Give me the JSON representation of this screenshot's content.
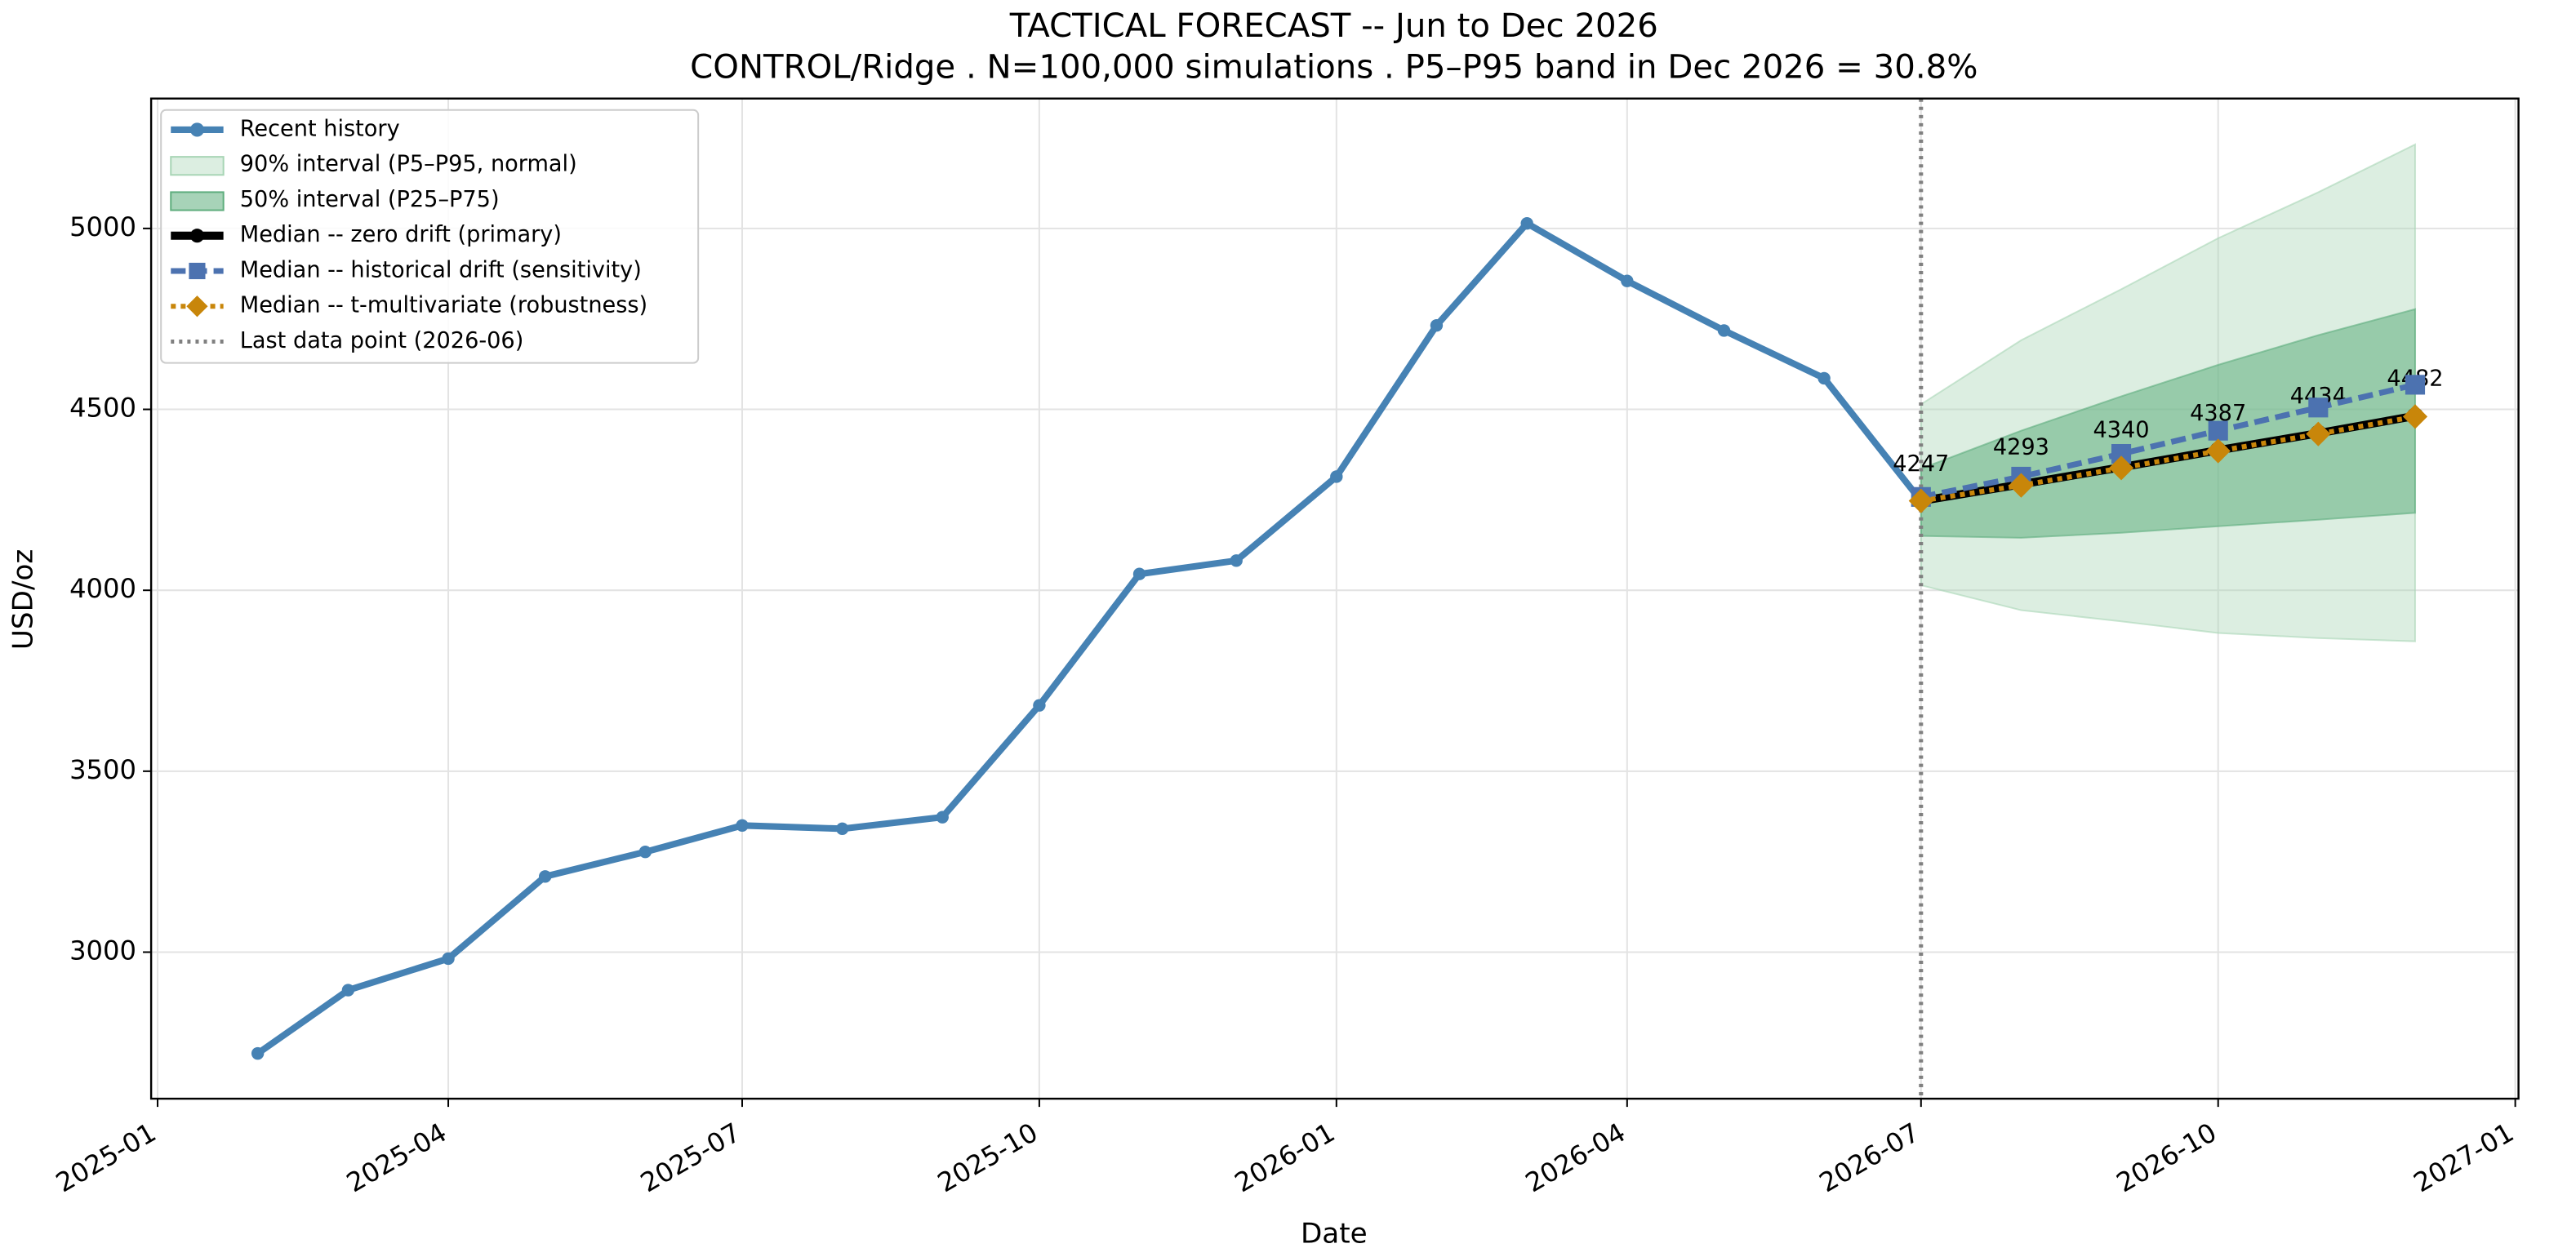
{
  "chart_data": {
    "type": "line",
    "title": "TACTICAL FORECAST -- Jun to Dec 2026",
    "subtitle": "CONTROL/Ridge . N=100,000 simulations . P5–P95 band in Dec 2026 = 30.8%",
    "xlabel": "Date",
    "ylabel": "USD/oz",
    "xlim": [
      "2024-12-30",
      "2027-01-02"
    ],
    "xticks": [
      "2025-01",
      "2025-04",
      "2025-07",
      "2025-10",
      "2026-01",
      "2026-04",
      "2026-07",
      "2026-10",
      "2027-01"
    ],
    "ylim": [
      2595,
      5359
    ],
    "yticks": [
      3000,
      3500,
      4000,
      4500,
      5000
    ],
    "grid": true,
    "legend": "upper left",
    "bands": [
      {
        "name": "90% interval (P5–P95, normal)",
        "color": "#a8d5b5",
        "x": [
          "2026-07",
          "2026-08",
          "2026-09",
          "2026-10",
          "2026-11",
          "2026-12"
        ],
        "lower": [
          4014,
          3945,
          3914,
          3882,
          3868,
          3859
        ],
        "upper": [
          4514,
          4691,
          4832,
          4973,
          5100,
          5232
        ]
      },
      {
        "name": "50% interval (P25–P75)",
        "color": "#5fae7e",
        "x": [
          "2026-07",
          "2026-08",
          "2026-09",
          "2026-10",
          "2026-11",
          "2026-12"
        ],
        "lower": [
          4150,
          4145,
          4159,
          4177,
          4195,
          4214
        ],
        "upper": [
          4336,
          4441,
          4536,
          4623,
          4705,
          4777
        ]
      }
    ],
    "series": [
      {
        "name": "Recent history",
        "color": "#4682b4",
        "linestyle": "solid",
        "marker": "circle",
        "x": [
          "2025-02",
          "2025-03",
          "2025-04",
          "2025-05",
          "2025-06",
          "2025-07",
          "2025-08",
          "2025-09",
          "2025-10",
          "2025-11",
          "2025-12",
          "2026-01",
          "2026-02",
          "2026-03",
          "2026-04",
          "2026-05",
          "2026-06",
          "2026-07"
        ],
        "values": [
          2720,
          2895,
          2982,
          3209,
          3277,
          3350,
          3341,
          3373,
          3682,
          4045,
          4082,
          4314,
          4732,
          5014,
          4855,
          4718,
          4586,
          4247
        ]
      },
      {
        "name": "Median -- zero drift (primary)",
        "color": "#000000",
        "linestyle": "solid",
        "marker": "circle",
        "data_labels": true,
        "x": [
          "2026-07",
          "2026-08",
          "2026-09",
          "2026-10",
          "2026-11",
          "2026-12"
        ],
        "values": [
          4247,
          4293,
          4340,
          4387,
          4434,
          4482
        ]
      },
      {
        "name": "Median -- historical drift (sensitivity)",
        "color": "#4c72b0",
        "linestyle": "dashed",
        "marker": "square",
        "x": [
          "2026-07",
          "2026-08",
          "2026-09",
          "2026-10",
          "2026-11",
          "2026-12"
        ],
        "values": [
          4258,
          4314,
          4377,
          4441,
          4505,
          4568
        ]
      },
      {
        "name": "Median -- t-multivariate (robustness)",
        "color": "#c8860a",
        "linestyle": "dotted",
        "marker": "diamond",
        "x": [
          "2026-07",
          "2026-08",
          "2026-09",
          "2026-10",
          "2026-11",
          "2026-12"
        ],
        "values": [
          4247,
          4290,
          4338,
          4385,
          4432,
          4480
        ]
      }
    ],
    "vline": {
      "x": "2026-07",
      "label": "Last data point (2026-06)",
      "color": "#808080"
    }
  }
}
